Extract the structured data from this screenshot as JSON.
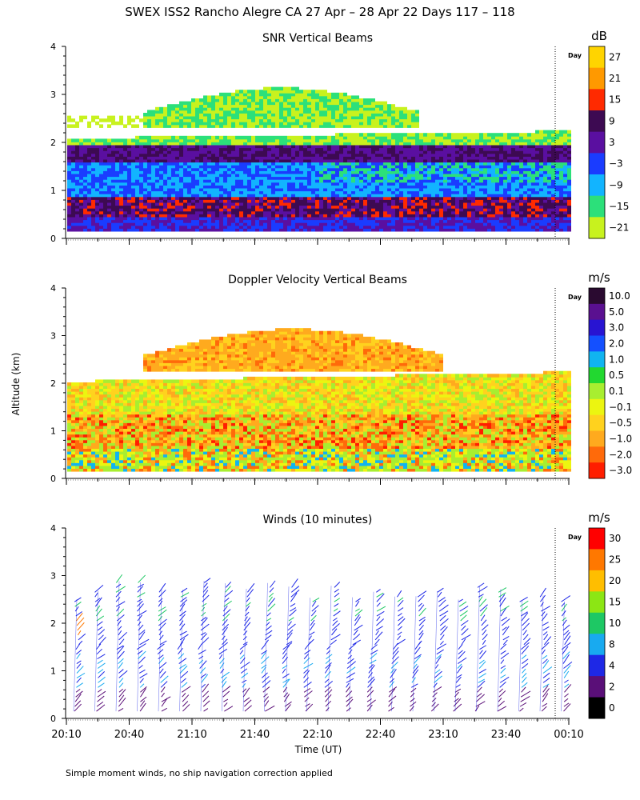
{
  "page": {
    "title": "SWEX ISS2 Rancho Alegre CA  27 Apr – 28 Apr 22 Days 117 – 118",
    "ylabel": "Altitude (km)",
    "xlabel": "Time (UT)",
    "footnote": "Simple moment winds, no ship navigation correction applied",
    "day_marker_label": "Day"
  },
  "chart_data": [
    {
      "type": "heatmap",
      "title": "SNR Vertical Beams",
      "xlabel": "",
      "ylabel": "Altitude (km)",
      "x_tick_labels": [],
      "y_ticks": [
        0,
        1,
        2,
        3,
        4
      ],
      "ylim": [
        0,
        4
      ],
      "colorbar": {
        "unit": "dB",
        "labels": [
          "27",
          "21",
          "15",
          "9",
          "3",
          "−3",
          "−9",
          "−15",
          "−21"
        ],
        "colors": [
          "#ffd400",
          "#ff9900",
          "#ff2a00",
          "#3d0a52",
          "#5a0fa0",
          "#1a3cff",
          "#12b4ff",
          "#2ce07a",
          "#c8f21e"
        ]
      },
      "description_bands": [
        {
          "alt_range": [
            2.3,
            3.1
          ],
          "class": "−15 to −21",
          "time_range": "20:50–22:40"
        },
        {
          "alt_range": [
            1.7,
            2.25
          ],
          "class": "3 to 9",
          "time_range": "20:10–00:00"
        },
        {
          "alt_range": [
            1.0,
            1.7
          ],
          "class": "−3 to −9",
          "time_range": "20:10–00:00"
        },
        {
          "alt_range": [
            0.5,
            1.0
          ],
          "class": "9 to 15",
          "time_range": "20:10–00:00"
        }
      ]
    },
    {
      "type": "heatmap",
      "title": "Doppler Velocity Vertical Beams",
      "xlabel": "",
      "ylabel": "Altitude (km)",
      "x_tick_labels": [],
      "y_ticks": [
        0,
        1,
        2,
        3,
        4
      ],
      "ylim": [
        0,
        4
      ],
      "colorbar": {
        "unit": "m/s",
        "labels": [
          "10.0",
          "5.0",
          "3.0",
          "2.0",
          "1.0",
          "0.5",
          "0.1",
          "−0.1",
          "−0.5",
          "−1.0",
          "−2.0",
          "−3.0"
        ],
        "colors": [
          "#2a0a30",
          "#5a1090",
          "#2814d2",
          "#1450ff",
          "#10b4f0",
          "#22d830",
          "#a8ee30",
          "#ecf510",
          "#ffd21e",
          "#ffaa1e",
          "#ff6a0a",
          "#ff1e00"
        ]
      }
    },
    {
      "type": "scatter",
      "title": "Winds (10 minutes)",
      "xlabel": "Time (UT)",
      "ylabel": "Altitude (km)",
      "x_tick_labels": [
        "20:10",
        "20:40",
        "21:10",
        "21:40",
        "22:10",
        "22:40",
        "23:10",
        "23:40",
        "00:10"
      ],
      "y_ticks": [
        0,
        1,
        2,
        3,
        4
      ],
      "ylim": [
        0,
        4
      ],
      "profiles_count": 24,
      "colorbar": {
        "unit": "m/s",
        "labels": [
          "30",
          "25",
          "20",
          "15",
          "10",
          "8",
          "4",
          "2",
          "0"
        ],
        "colors": [
          "#ff0000",
          "#ff7800",
          "#ffbe00",
          "#8ce614",
          "#1ec864",
          "#18aaf0",
          "#1e28e6",
          "#5a0f78",
          "#000000"
        ]
      }
    }
  ]
}
